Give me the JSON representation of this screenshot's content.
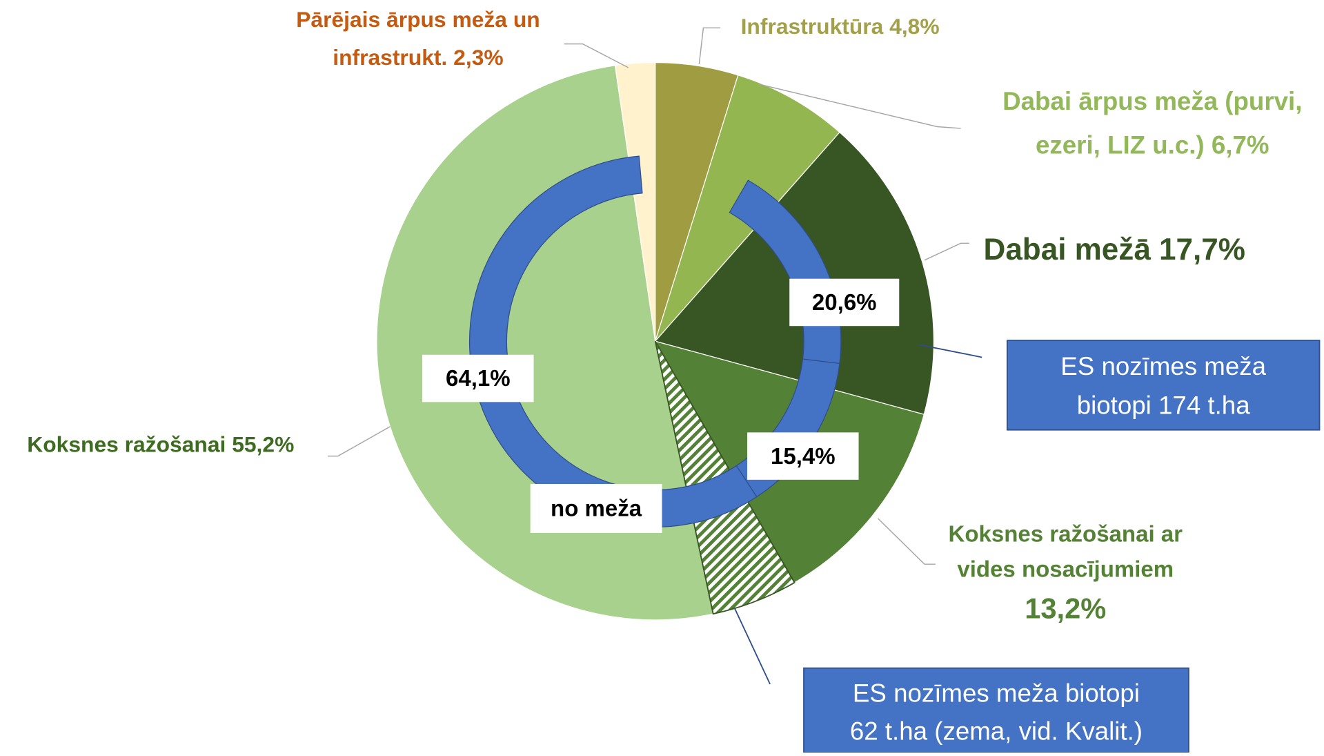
{
  "chart_data": {
    "type": "pie",
    "categories": [
      [
        "Infrastruktūra  4,8%"
      ],
      [
        "Dabai ārpus meža (purvi,",
        "ezeri, LIZ u.c.) 6,7%"
      ],
      [
        "Dabai mežā 17,7%"
      ],
      [
        "Koksnes ražošanai ar",
        "vides nosacījumiem",
        "13,2%"
      ],
      [
        "Koksnes ražošanai 55,2%"
      ],
      [
        "Pārējais ārpus meža un",
        "infrastrukt. 2,3%"
      ]
    ],
    "values": [
      4.8,
      6.7,
      17.7,
      13.2,
      55.2,
      2.3
    ],
    "colors": [
      "#a09c42",
      "#94b650",
      "#375623",
      "#538135",
      "#a9d18e",
      "#fff2cc"
    ],
    "label_colors": [
      "#a3a04a",
      "#92b85a",
      "#375623",
      "#548235",
      "#3d6b1f",
      "#c55a11"
    ],
    "inner_ring": {
      "values": [
        20.6,
        15.4,
        64.1
      ],
      "value_labels": [
        "20,6%",
        "15,4%",
        "64,1%"
      ],
      "color": "#4472c4"
    },
    "inner_note": "no meža",
    "annotations": [
      [
        "ES nozīmes meža",
        "biotopi 174 t.ha"
      ],
      [
        "ES nozīmes meža biotopi",
        "62 t.ha (zema, vid. Kvalit.)"
      ]
    ]
  }
}
